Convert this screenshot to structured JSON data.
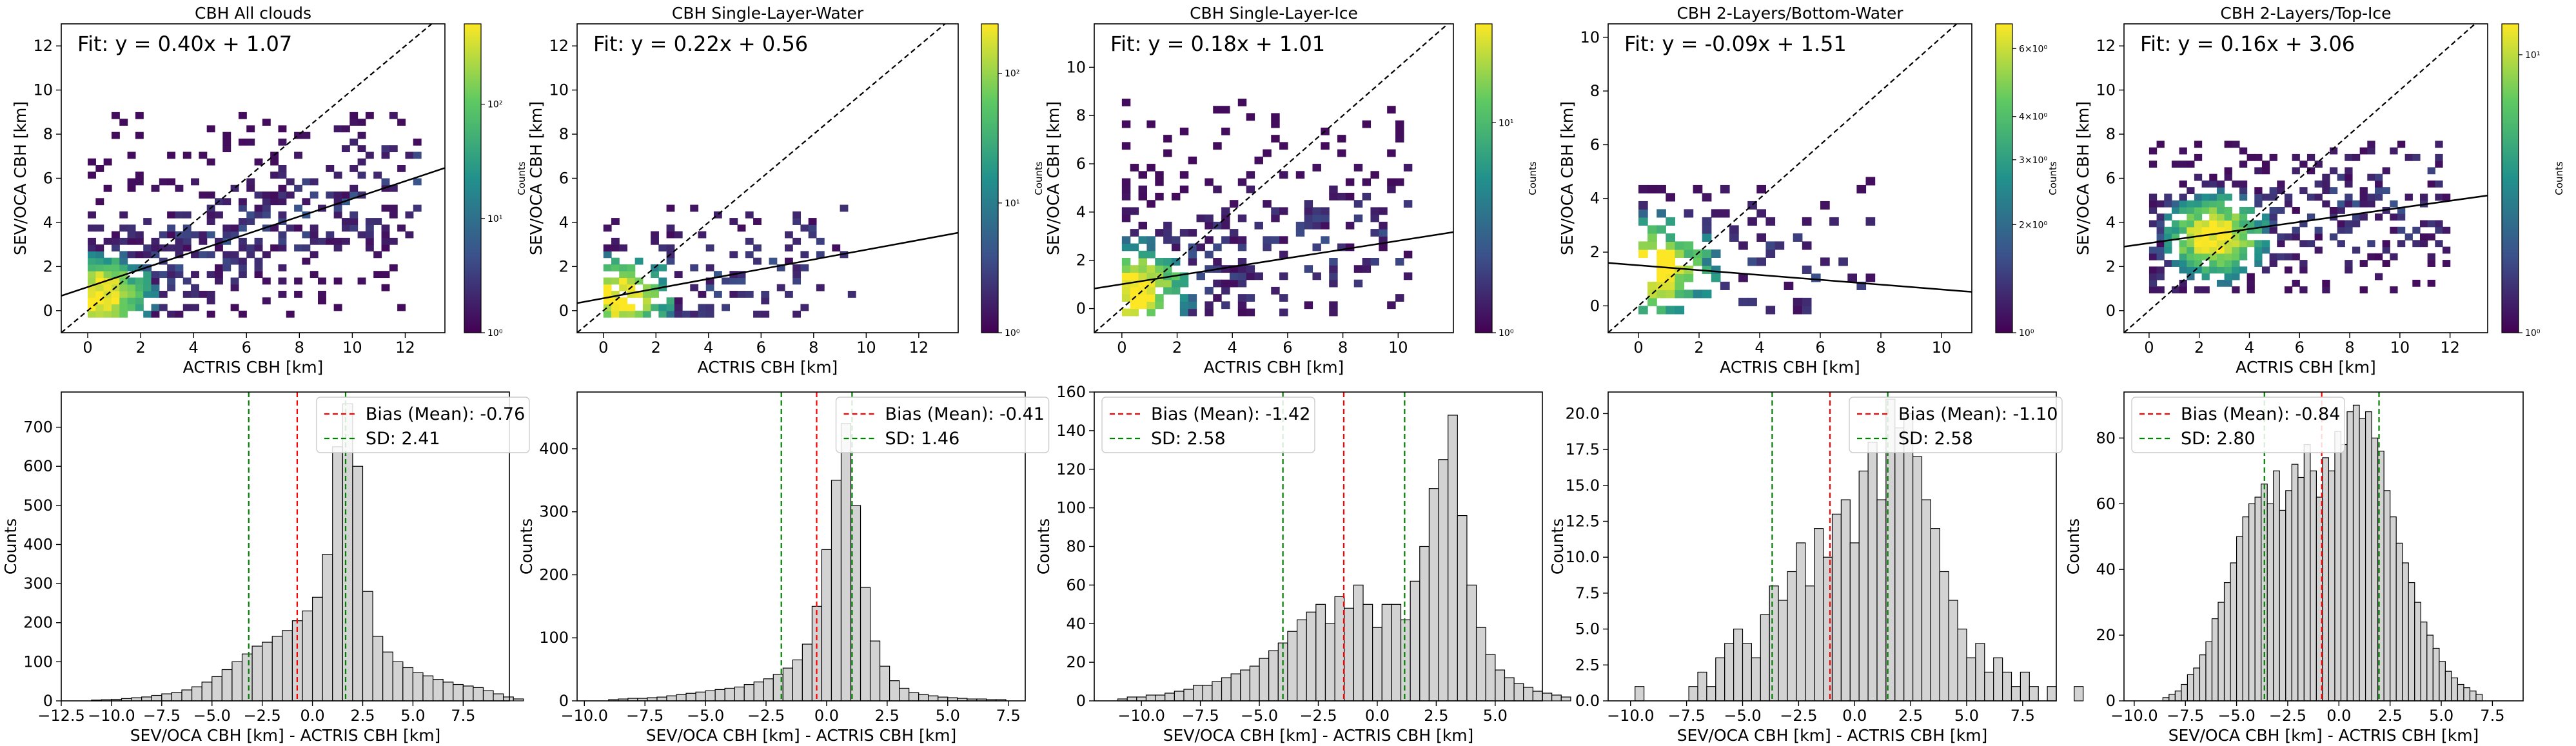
{
  "figure": {
    "background": "#ffffff",
    "colors": {
      "fit_line": "#000000",
      "identity_line": "#000000",
      "bias_line": "#ff0000",
      "sd_line": "#008000",
      "hist_fill": "#d3d3d3",
      "hist_edge": "#000000",
      "colormap": [
        "#440154",
        "#3b528b",
        "#21918c",
        "#5ec962",
        "#fde725"
      ]
    }
  },
  "chart_data": [
    {
      "type": "heatmap",
      "title": "CBH All clouds",
      "xlabel": "ACTRIS CBH [km]",
      "ylabel": "SEV/OCA CBH [km]",
      "xlim": [
        -1,
        13.5
      ],
      "ylim": [
        -1,
        13
      ],
      "xticks": [
        0,
        2,
        4,
        6,
        8,
        10,
        12
      ],
      "yticks": [
        0,
        2,
        4,
        6,
        8,
        10,
        12
      ],
      "fit_label": "Fit: y = 0.40x + 1.07",
      "fit": {
        "slope": 0.4,
        "intercept": 1.07
      },
      "identity_line": true,
      "cells": {
        "x_range": [
          0,
          12.5
        ],
        "y_range": [
          -0.3,
          8.8
        ],
        "peak": [
          0.3,
          0.4
        ],
        "density": 0.78,
        "seed": 11
      },
      "colorbar": {
        "label": "Counts",
        "scale": "log",
        "ticks": [
          "10⁰",
          "10¹",
          "10²"
        ],
        "tick_pos": [
          0,
          0.37,
          0.74
        ]
      }
    },
    {
      "type": "heatmap",
      "title": "CBH Single-Layer-Water",
      "xlabel": "ACTRIS CBH [km]",
      "ylabel": "SEV/OCA CBH [km]",
      "xlim": [
        -1,
        13.5
      ],
      "ylim": [
        -1,
        13
      ],
      "xticks": [
        0,
        2,
        4,
        6,
        8,
        10,
        12
      ],
      "yticks": [
        0,
        2,
        4,
        6,
        8,
        10,
        12
      ],
      "fit_label": "Fit: y = 0.22x + 0.56",
      "fit": {
        "slope": 0.22,
        "intercept": 0.56
      },
      "identity_line": true,
      "cells": {
        "x_range": [
          0,
          9.5
        ],
        "y_range": [
          -0.3,
          4.5
        ],
        "peak": [
          0.5,
          0.4
        ],
        "density": 0.55,
        "seed": 23
      },
      "colorbar": {
        "label": "Counts",
        "scale": "log",
        "ticks": [
          "10⁰",
          "10¹",
          "10²"
        ],
        "tick_pos": [
          0,
          0.42,
          0.84
        ]
      }
    },
    {
      "type": "heatmap",
      "title": "CBH Single-Layer-Ice",
      "xlabel": "ACTRIS CBH [km]",
      "ylabel": "SEV/OCA CBH [km]",
      "xlim": [
        -1,
        12
      ],
      "ylim": [
        -1,
        11.8
      ],
      "xticks": [
        0,
        2,
        4,
        6,
        8,
        10
      ],
      "yticks": [
        0,
        2,
        4,
        6,
        8,
        10
      ],
      "fit_label": "Fit: y = 0.18x + 1.01",
      "fit": {
        "slope": 0.18,
        "intercept": 1.01
      },
      "identity_line": true,
      "cells": {
        "x_range": [
          0,
          10.5
        ],
        "y_range": [
          -0.3,
          8.5
        ],
        "peak": [
          0.3,
          0.6
        ],
        "density": 0.62,
        "seed": 37
      },
      "colorbar": {
        "label": "Counts",
        "scale": "log",
        "ticks": [
          "10⁰",
          "10¹"
        ],
        "tick_pos": [
          0,
          0.68
        ]
      }
    },
    {
      "type": "heatmap",
      "title": "CBH 2-Layers/Bottom-Water",
      "xlabel": "ACTRIS CBH [km]",
      "ylabel": "SEV/OCA CBH [km]",
      "xlim": [
        -1,
        11
      ],
      "ylim": [
        -1,
        10.5
      ],
      "xticks": [
        0,
        2,
        4,
        6,
        8,
        10
      ],
      "yticks": [
        0,
        2,
        4,
        6,
        8,
        10
      ],
      "fit_label": "Fit: y = -0.09x + 1.51",
      "fit": {
        "slope": -0.09,
        "intercept": 1.51
      },
      "identity_line": true,
      "cells": {
        "x_range": [
          0,
          7.5
        ],
        "y_range": [
          -0.3,
          4.5
        ],
        "peak": [
          0.3,
          1.2
        ],
        "density": 0.42,
        "seed": 41
      },
      "colorbar": {
        "label": "Counts",
        "scale": "log",
        "ticks": [
          "10⁰",
          "2×10⁰",
          "3×10⁰",
          "4×10⁰",
          "6×10⁰"
        ],
        "tick_pos": [
          0,
          0.35,
          0.56,
          0.7,
          0.92
        ]
      }
    },
    {
      "type": "heatmap",
      "title": "CBH 2-Layers/Top-Ice",
      "xlabel": "ACTRIS CBH [km]",
      "ylabel": "SEV/OCA CBH [km]",
      "xlim": [
        -1,
        13.5
      ],
      "ylim": [
        -1,
        13
      ],
      "xticks": [
        0,
        2,
        4,
        6,
        8,
        10,
        12
      ],
      "yticks": [
        0,
        2,
        4,
        6,
        8,
        10,
        12
      ],
      "fit_label": "Fit: y = 0.16x + 3.06",
      "fit": {
        "slope": 0.16,
        "intercept": 3.06
      },
      "identity_line": true,
      "cells": {
        "x_range": [
          0,
          12
        ],
        "y_range": [
          0.8,
          7.5
        ],
        "peak": [
          2.5,
          3.2
        ],
        "density": 0.72,
        "seed": 53
      },
      "colorbar": {
        "label": "Counts",
        "scale": "log",
        "ticks": [
          "10⁰",
          "10¹"
        ],
        "tick_pos": [
          0,
          0.9
        ]
      }
    },
    {
      "type": "bar",
      "xlabel": "SEV/OCA CBH [km] - ACTRIS CBH [km]",
      "ylabel": "Counts",
      "xlim": [
        -12.5,
        9.8
      ],
      "ylim": [
        0,
        790
      ],
      "xticks": [
        -12.5,
        -10.0,
        -7.5,
        -5.0,
        -2.5,
        0.0,
        2.5,
        5.0,
        7.5
      ],
      "yticks": [
        0,
        100,
        200,
        300,
        400,
        500,
        600,
        700
      ],
      "bias_label": "Bias (Mean): -0.76",
      "sd_label": "SD: 2.41",
      "bias": -0.76,
      "sd": 2.41,
      "bins": {
        "start": -11.0,
        "width": 0.5,
        "counts": [
          2,
          3,
          4,
          6,
          8,
          10,
          14,
          18,
          22,
          28,
          36,
          48,
          62,
          80,
          100,
          120,
          140,
          150,
          165,
          180,
          205,
          230,
          265,
          375,
          650,
          760,
          600,
          280,
          165,
          125,
          100,
          85,
          72,
          64,
          55,
          48,
          42,
          38,
          34,
          26,
          18,
          10,
          5
        ]
      }
    },
    {
      "type": "bar",
      "xlabel": "SEV/OCA CBH [km] - ACTRIS CBH [km]",
      "ylabel": "Counts",
      "xlim": [
        -10.3,
        8.2
      ],
      "ylim": [
        0,
        490
      ],
      "xticks": [
        -10.0,
        -7.5,
        -5.0,
        -2.5,
        0.0,
        2.5,
        5.0,
        7.5
      ],
      "yticks": [
        0,
        100,
        200,
        300,
        400
      ],
      "bias_label": "Bias (Mean): -0.41",
      "sd_label": "SD: 1.46",
      "bias": -0.41,
      "sd": 1.46,
      "bins": {
        "start": -9.0,
        "width": 0.4,
        "counts": [
          2,
          3,
          4,
          4,
          5,
          6,
          8,
          10,
          12,
          14,
          16,
          18,
          20,
          22,
          26,
          30,
          35,
          42,
          52,
          65,
          90,
          150,
          240,
          350,
          440,
          310,
          180,
          95,
          55,
          32,
          20,
          13,
          10,
          8,
          6,
          5,
          4,
          3,
          3,
          2,
          2
        ]
      }
    },
    {
      "type": "bar",
      "xlabel": "SEV/OCA CBH [km] - ACTRIS CBH [km]",
      "ylabel": "Counts",
      "xlim": [
        -12,
        7
      ],
      "ylim": [
        0,
        160
      ],
      "xticks": [
        -10.0,
        -7.5,
        -5.0,
        -2.5,
        0.0,
        2.5,
        5.0
      ],
      "yticks": [
        0,
        20,
        40,
        60,
        80,
        100,
        120,
        140,
        160
      ],
      "bias_label": "Bias (Mean): -1.42",
      "sd_label": "SD: 2.58",
      "bias": -1.42,
      "sd": 2.58,
      "bins": {
        "start": -11.0,
        "width": 0.4,
        "counts": [
          1,
          2,
          2,
          3,
          3,
          4,
          5,
          6,
          8,
          8,
          10,
          12,
          14,
          16,
          18,
          22,
          26,
          30,
          36,
          42,
          46,
          50,
          40,
          54,
          48,
          60,
          50,
          38,
          50,
          50,
          42,
          62,
          80,
          110,
          125,
          148,
          96,
          60,
          38,
          24,
          16,
          12,
          9,
          7,
          5,
          4,
          3,
          2
        ]
      }
    },
    {
      "type": "bar",
      "xlabel": "SEV/OCA CBH [km] - ACTRIS CBH [km]",
      "ylabel": "Counts",
      "xlim": [
        -11,
        9
      ],
      "ylim": [
        0,
        21.5
      ],
      "xticks": [
        -10.0,
        -7.5,
        -5.0,
        -2.5,
        0.0,
        2.5,
        5.0,
        7.5
      ],
      "yticks": [
        0.0,
        2.5,
        5.0,
        7.5,
        10.0,
        12.5,
        15.0,
        17.5,
        20.0
      ],
      "bias_label": "Bias (Mean): -1.10",
      "sd_label": "SD: 2.58",
      "bias": -1.1,
      "sd": 2.58,
      "bins": {
        "start": -9.8,
        "width": 0.4,
        "counts": [
          1,
          0,
          0,
          0,
          0,
          0,
          1,
          2,
          1,
          3,
          4,
          5,
          4,
          3,
          6,
          8,
          7,
          9,
          11,
          8,
          12,
          10,
          13,
          14,
          11,
          16,
          18,
          14,
          21,
          19,
          20,
          17,
          14,
          12,
          9,
          7,
          5,
          3,
          4,
          2,
          3,
          2,
          1,
          2,
          1,
          0,
          1,
          0,
          0,
          1
        ]
      }
    },
    {
      "type": "bar",
      "xlabel": "SEV/OCA CBH [km] - ACTRIS CBH [km]",
      "ylabel": "Counts",
      "xlim": [
        -10.5,
        9
      ],
      "ylim": [
        0,
        94
      ],
      "xticks": [
        -10.0,
        -7.5,
        -5.0,
        -2.5,
        0.0,
        2.5,
        5.0,
        7.5
      ],
      "yticks": [
        0,
        20,
        40,
        60,
        80
      ],
      "bias_label": "Bias (Mean): -0.84",
      "sd_label": "SD: 2.80",
      "bias": -0.84,
      "sd": 2.8,
      "bins": {
        "start": -8.6,
        "width": 0.3,
        "counts": [
          1,
          2,
          3,
          5,
          8,
          10,
          14,
          18,
          25,
          30,
          36,
          42,
          50,
          56,
          60,
          62,
          66,
          60,
          70,
          58,
          64,
          72,
          68,
          78,
          70,
          62,
          74,
          70,
          82,
          78,
          88,
          90,
          86,
          88,
          80,
          76,
          64,
          56,
          48,
          42,
          36,
          30,
          24,
          20,
          16,
          12,
          9,
          7,
          5,
          4,
          3,
          2
        ]
      }
    }
  ]
}
